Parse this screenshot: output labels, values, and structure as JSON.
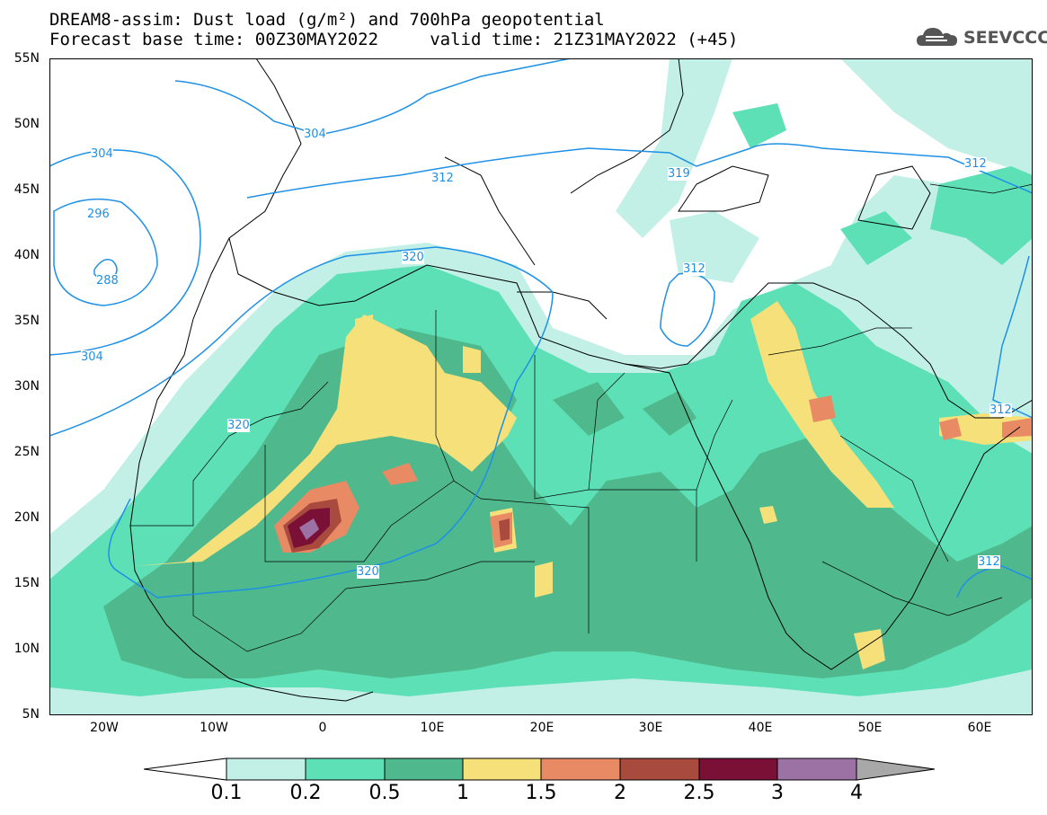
{
  "title": {
    "line1": "DREAM8-assim: Dust load (g/m²) and 700hPa geopotential",
    "line2": "Forecast base time: 00Z30MAY2022     valid time: 21Z31MAY2022 (+45)"
  },
  "logo": {
    "text": "SEEVCCC",
    "icon": "cloud-logo-icon"
  },
  "axes": {
    "lat_labels": [
      "55N",
      "50N",
      "45N",
      "40N",
      "35N",
      "30N",
      "25N",
      "20N",
      "15N",
      "10N",
      "5N"
    ],
    "lon_labels": [
      "20W",
      "10W",
      "0",
      "10E",
      "20E",
      "30E",
      "40E",
      "50E",
      "60E"
    ],
    "lat_range": [
      5,
      55
    ],
    "lon_range": [
      -25,
      65
    ]
  },
  "colorbar": {
    "labels": [
      "0.1",
      "0.2",
      "0.5",
      "1",
      "1.5",
      "2",
      "2.5",
      "3",
      "4"
    ],
    "colors": [
      "#c2f0e6",
      "#5ee0b6",
      "#4fb88c",
      "#f5e07a",
      "#e88a64",
      "#a84a3e",
      "#7a1036",
      "#9c72a4",
      "#a8a8a8"
    ]
  },
  "contours": {
    "color": "#1e90e6",
    "labels": [
      "304",
      "304",
      "296",
      "288",
      "304",
      "312",
      "319",
      "312",
      "320",
      "320",
      "320",
      "312",
      "312",
      "312"
    ]
  }
}
